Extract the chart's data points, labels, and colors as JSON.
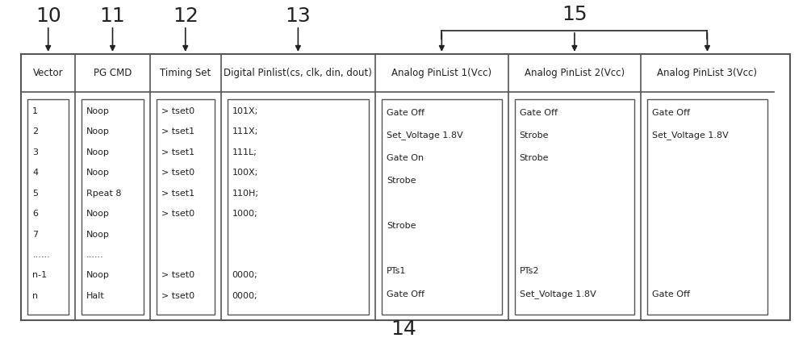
{
  "bg_color": "#ffffff",
  "border_color": "#555555",
  "text_color": "#222222",
  "figsize": [
    10.0,
    4.24
  ],
  "dpi": 100,
  "font_size_header": 8.5,
  "font_size_body": 8,
  "font_size_number": 18,
  "headers": [
    "Vector",
    "PG CMD",
    "Timing Set",
    "Digital Pinlist(cs, clk, din, dout)",
    "Analog PinList 1(Vcc)",
    "Analog PinList 2(Vcc)",
    "Analog PinList 3(Vcc)"
  ],
  "body_lines": [
    [
      "1",
      "2",
      "3",
      "4",
      "5",
      "6",
      "7",
      "......",
      "n-1",
      "n"
    ],
    [
      "Noop",
      "Noop",
      "Noop",
      "Noop",
      "Rpeat 8",
      "Noop",
      "Noop",
      "......",
      "Noop",
      "Halt"
    ],
    [
      "> tset0",
      "> tset1",
      "> tset1",
      "> tset0",
      "> tset1",
      "> tset0",
      "",
      "",
      "> tset0",
      "> tset0"
    ],
    [
      "101X;",
      "111X;",
      "111L;",
      "100X;",
      "110H;",
      "1000;",
      "",
      "",
      "0000;",
      "0000;"
    ],
    [
      "Gate Off",
      "Set_Voltage 1.8V",
      "Gate On",
      "Strobe",
      "",
      "Strobe",
      "",
      "PTs1",
      "Gate Off"
    ],
    [
      "Gate Off",
      "Strobe",
      "Strobe",
      "",
      "",
      "",
      "",
      "PTs2",
      "Set_Voltage 1.8V"
    ],
    [
      "Gate Off",
      "Set_Voltage 1.8V",
      "",
      "",
      "",
      "",
      "",
      "",
      "Gate Off"
    ]
  ]
}
